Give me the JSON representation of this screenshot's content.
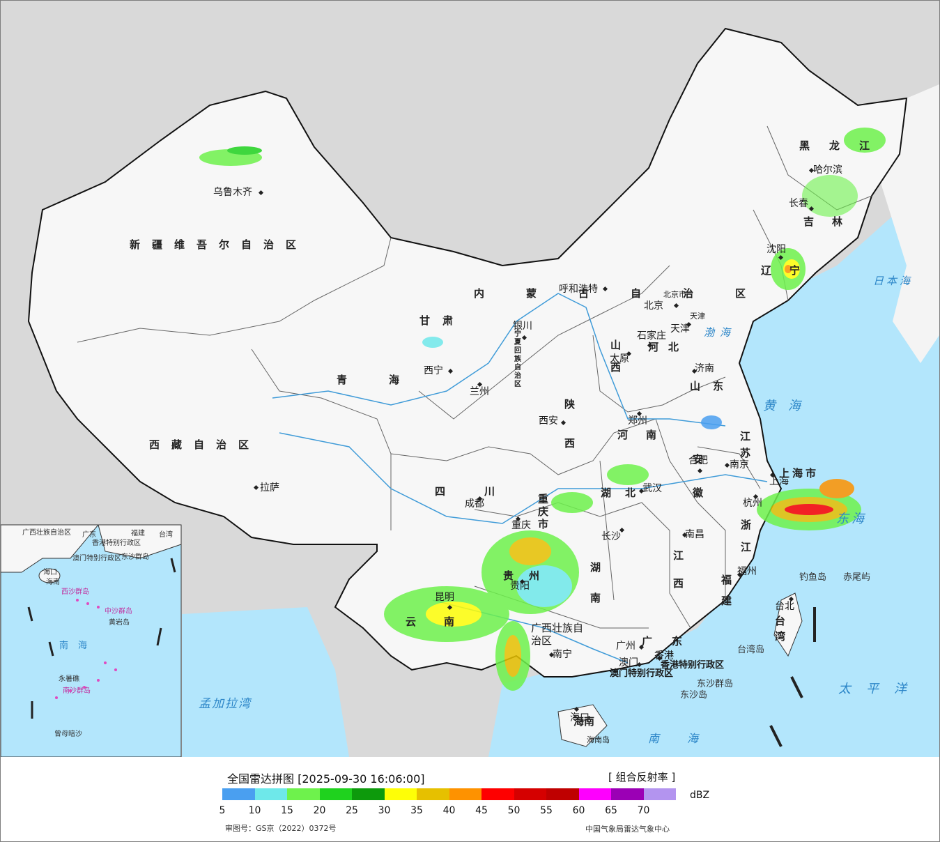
{
  "legend": {
    "title": "全国雷达拼图 [2025-09-30 16:06:00]",
    "product": "[ 组合反射率 ]",
    "unit": "dBZ",
    "colors": [
      "#4a9ff0",
      "#6ee8ea",
      "#6ef24c",
      "#1fd21e",
      "#0d9a0c",
      "#fefe07",
      "#e6c000",
      "#fe9200",
      "#fe0000",
      "#d50000",
      "#bf0000",
      "#fe00fe",
      "#9b00b5",
      "#b394ef"
    ],
    "ticks": [
      "5",
      "10",
      "15",
      "20",
      "25",
      "30",
      "35",
      "40",
      "45",
      "50",
      "55",
      "60",
      "65",
      "70"
    ],
    "approval": "审图号：GS京（2022）0372号",
    "source": "中国气象局雷达气象中心"
  },
  "map": {
    "colors": {
      "sea": "#b3e6fc",
      "land": "#f7f7f7",
      "outside": "#d9d9d9",
      "river": "#3f9bd8",
      "border": "#111111"
    },
    "cities": [
      "乌鲁木齐",
      "呼和浩特",
      "北京",
      "天津",
      "石家庄",
      "太原",
      "银川",
      "西宁",
      "兰州",
      "西安",
      "郑州",
      "济南",
      "合肥",
      "南京",
      "上海",
      "杭州",
      "武汉",
      "长沙",
      "南昌",
      "福州",
      "重庆",
      "成都",
      "贵阳",
      "昆明",
      "南宁",
      "广州",
      "澳门",
      "香港",
      "海口",
      "台北",
      "拉萨",
      "哈尔滨",
      "长春",
      "沈阳"
    ],
    "provinces": {
      "xinjiang": "新疆维吾尔自治区",
      "xizang": "西藏自治区",
      "qinghai": "青海",
      "gansu": "甘肃",
      "neimenggu": "内蒙古自治区",
      "heilongjiang": "黑龙江",
      "jilin": "吉林",
      "liaoning": "辽宁",
      "hebei": "河北",
      "shanxi": "山西",
      "shandong": "山东",
      "henan": "河南",
      "shaanxi": "陕西",
      "sichuan": "四川",
      "hubei": "湖北",
      "hunan": "湖南",
      "anhui": "安徽",
      "jiangsu": "江苏",
      "zhejiang": "浙江",
      "jiangxi": "江西",
      "fujian": "福建",
      "guangdong": "广东",
      "guangxi": "广西壮族自治区",
      "yunnan": "云南",
      "guizhou": "贵州",
      "hainan": "海南",
      "taiwan": "台湾",
      "chongqing": "重庆市",
      "shanghai": "上海市",
      "ningxia": "宁夏回族自治区",
      "beijing_city": "北京市",
      "tianjin_city": "天津",
      "hk_sar": "香港特别行政区",
      "macau_sar": "澳门特别行政区",
      "hainan_island": "海南岛"
    },
    "seas": {
      "japan": "日本海",
      "bohai": "渤海",
      "yellow": "黄海",
      "east": "东海",
      "pacific": "太平洋",
      "south": "南海",
      "bengal": "孟加拉湾"
    },
    "islands": [
      "钓鱼岛",
      "赤尾屿",
      "台湾岛",
      "东沙群岛",
      "东沙岛"
    ],
    "inset": {
      "labels": [
        "广西壮族自治区",
        "广东",
        "福建",
        "台湾",
        "香港特别行政区",
        "澳门特别行政区",
        "东沙群岛",
        "海口",
        "海南",
        "西沙群岛",
        "中沙群岛",
        "黄岩岛",
        "南海",
        "永暑礁",
        "南沙群岛",
        "曾母暗沙"
      ]
    }
  }
}
